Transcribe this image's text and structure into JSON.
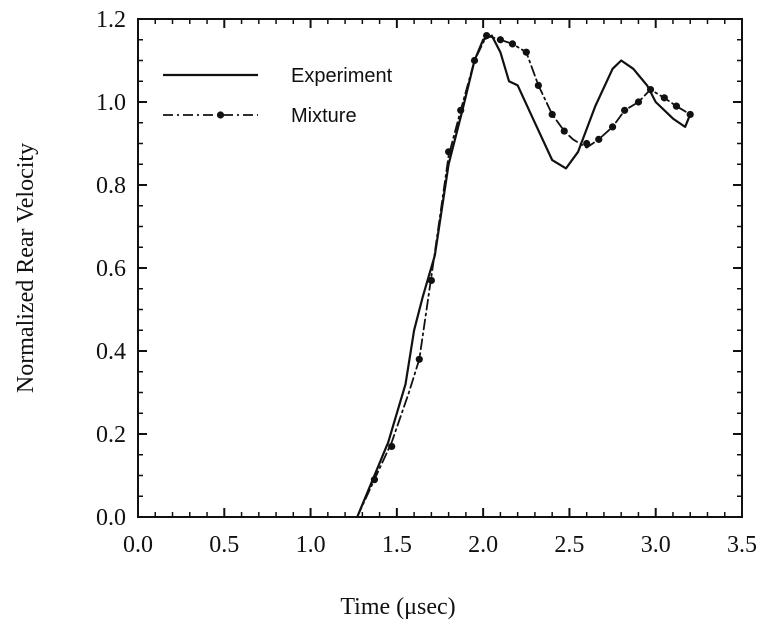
{
  "chart_data": {
    "type": "line",
    "title": "",
    "xlabel": "Time (μsec)",
    "ylabel": "Normalized Rear Velocity",
    "xlim": [
      0.0,
      3.5
    ],
    "ylim": [
      0.0,
      1.2
    ],
    "x_ticks": [
      "0.0",
      "0.5",
      "1.0",
      "1.5",
      "2.0",
      "2.5",
      "3.0",
      "3.5"
    ],
    "y_ticks": [
      "0.0",
      "0.2",
      "0.4",
      "0.6",
      "0.8",
      "1.0",
      "1.2"
    ],
    "grid": false,
    "legend_position": "top-left",
    "series": [
      {
        "name": "Experiment",
        "style": "solid",
        "color": "#111111",
        "points": [
          [
            1.27,
            0.0
          ],
          [
            1.35,
            0.08
          ],
          [
            1.45,
            0.18
          ],
          [
            1.55,
            0.32
          ],
          [
            1.6,
            0.45
          ],
          [
            1.65,
            0.53
          ],
          [
            1.72,
            0.63
          ],
          [
            1.8,
            0.85
          ],
          [
            1.88,
            0.98
          ],
          [
            1.95,
            1.1
          ],
          [
            2.0,
            1.15
          ],
          [
            2.05,
            1.16
          ],
          [
            2.1,
            1.12
          ],
          [
            2.15,
            1.05
          ],
          [
            2.2,
            1.04
          ],
          [
            2.3,
            0.95
          ],
          [
            2.4,
            0.86
          ],
          [
            2.48,
            0.84
          ],
          [
            2.55,
            0.88
          ],
          [
            2.65,
            0.99
          ],
          [
            2.75,
            1.08
          ],
          [
            2.8,
            1.1
          ],
          [
            2.87,
            1.08
          ],
          [
            2.95,
            1.04
          ],
          [
            3.0,
            1.0
          ],
          [
            3.1,
            0.96
          ],
          [
            3.17,
            0.94
          ],
          [
            3.2,
            0.97
          ]
        ]
      },
      {
        "name": "Mixture",
        "style": "dash-dot",
        "color": "#111111",
        "points": [
          [
            1.27,
            0.0
          ],
          [
            1.37,
            0.09
          ],
          [
            1.47,
            0.18
          ],
          [
            1.57,
            0.3
          ],
          [
            1.63,
            0.38
          ],
          [
            1.7,
            0.58
          ],
          [
            1.8,
            0.87
          ],
          [
            1.87,
            0.98
          ],
          [
            1.95,
            1.1
          ],
          [
            2.02,
            1.16
          ],
          [
            2.1,
            1.15
          ],
          [
            2.17,
            1.14
          ],
          [
            2.25,
            1.12
          ],
          [
            2.32,
            1.04
          ],
          [
            2.4,
            0.97
          ],
          [
            2.47,
            0.93
          ],
          [
            2.52,
            0.91
          ],
          [
            2.6,
            0.89
          ],
          [
            2.67,
            0.91
          ],
          [
            2.75,
            0.94
          ],
          [
            2.82,
            0.98
          ],
          [
            2.9,
            1.0
          ],
          [
            2.97,
            1.03
          ],
          [
            3.05,
            1.01
          ],
          [
            3.12,
            0.99
          ],
          [
            3.2,
            0.97
          ]
        ],
        "markers": [
          [
            1.37,
            0.09
          ],
          [
            1.47,
            0.17
          ],
          [
            1.63,
            0.38
          ],
          [
            1.7,
            0.57
          ],
          [
            1.8,
            0.88
          ],
          [
            1.87,
            0.98
          ],
          [
            1.95,
            1.1
          ],
          [
            2.02,
            1.16
          ],
          [
            2.1,
            1.15
          ],
          [
            2.17,
            1.14
          ],
          [
            2.25,
            1.12
          ],
          [
            2.32,
            1.04
          ],
          [
            2.4,
            0.97
          ],
          [
            2.47,
            0.93
          ],
          [
            2.6,
            0.9
          ],
          [
            2.67,
            0.91
          ],
          [
            2.75,
            0.94
          ],
          [
            2.82,
            0.98
          ],
          [
            2.9,
            1.0
          ],
          [
            2.97,
            1.03
          ],
          [
            3.05,
            1.01
          ],
          [
            3.12,
            0.99
          ],
          [
            3.2,
            0.97
          ]
        ]
      }
    ]
  }
}
